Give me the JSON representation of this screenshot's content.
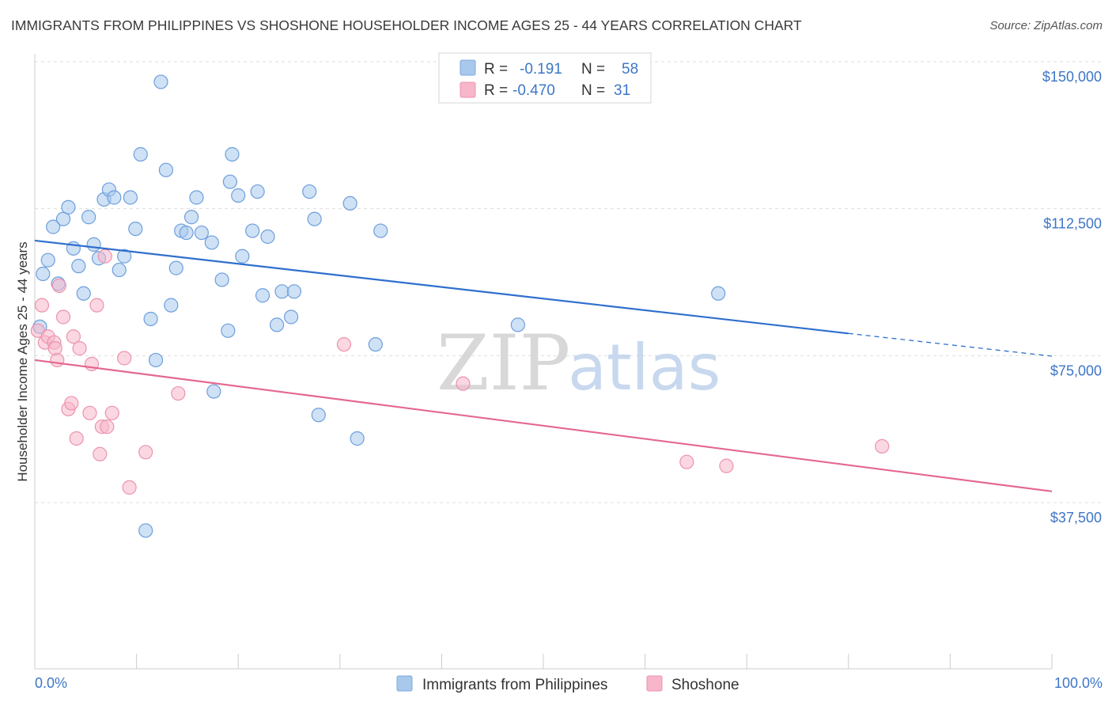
{
  "title": "IMMIGRANTS FROM PHILIPPINES VS SHOSHONE HOUSEHOLDER INCOME AGES 25 - 44 YEARS CORRELATION CHART",
  "source": "Source: ZipAtlas.com",
  "watermark": {
    "zip": "ZIP",
    "atlas": "atlas"
  },
  "colors": {
    "philippines": "#a8c8ec",
    "philippines_line": "#2f6fcd",
    "shoshone": "#f7b6ca",
    "shoshone_line": "#e4688f",
    "grid": "#dddddd",
    "label": "#3d76c8"
  },
  "legend": {
    "rows": [
      {
        "r_label": "R =",
        "r_value": "-0.191",
        "n_label": "N =",
        "n_value": "58"
      },
      {
        "r_label": "R =",
        "r_value": "-0.470",
        "n_label": "N =",
        "n_value": "31"
      }
    ]
  },
  "bottom_legend": [
    "Immigrants from Philippines",
    "Shoshone"
  ],
  "chart_data": {
    "type": "scatter",
    "ylabel": "Householder Income Ages 25 - 44 years",
    "x_tick_labels": [
      "0.0%",
      "100.0%"
    ],
    "y_tick_labels": [
      "$150,000",
      "$112,500",
      "$75,000",
      "$37,500"
    ],
    "y_ticks": [
      150000,
      112500,
      75000,
      37500
    ],
    "xlim": [
      0,
      100
    ],
    "ylim": [
      0,
      155000
    ],
    "grid": true,
    "legend_position": "top-center",
    "series": [
      {
        "name": "Immigrants from Philippines",
        "r": -0.191,
        "n": 58,
        "trend": {
          "x": [
            0,
            80
          ],
          "y": [
            108000,
            84300
          ],
          "dashed_extension_to": [
            100,
            78500
          ]
        },
        "points": [
          [
            0.5,
            86000
          ],
          [
            0.8,
            99500
          ],
          [
            1.3,
            103000
          ],
          [
            1.8,
            111500
          ],
          [
            2.3,
            97000
          ],
          [
            2.8,
            113500
          ],
          [
            3.3,
            116500
          ],
          [
            3.8,
            106000
          ],
          [
            4.3,
            101500
          ],
          [
            4.8,
            94500
          ],
          [
            5.3,
            114000
          ],
          [
            5.8,
            107000
          ],
          [
            6.3,
            103500
          ],
          [
            6.8,
            118500
          ],
          [
            7.3,
            121000
          ],
          [
            7.8,
            119000
          ],
          [
            8.3,
            100500
          ],
          [
            8.8,
            104000
          ],
          [
            9.4,
            119000
          ],
          [
            9.9,
            111000
          ],
          [
            10.4,
            130000
          ],
          [
            10.9,
            34000
          ],
          [
            11.4,
            88000
          ],
          [
            11.9,
            77500
          ],
          [
            12.4,
            148500
          ],
          [
            12.9,
            126000
          ],
          [
            13.4,
            91500
          ],
          [
            13.9,
            101000
          ],
          [
            14.4,
            110500
          ],
          [
            14.9,
            110000
          ],
          [
            15.4,
            114000
          ],
          [
            15.9,
            119000
          ],
          [
            16.4,
            110000
          ],
          [
            17.4,
            107500
          ],
          [
            17.6,
            69500
          ],
          [
            18.4,
            98000
          ],
          [
            19.0,
            85000
          ],
          [
            19.2,
            123000
          ],
          [
            19.4,
            130000
          ],
          [
            20.0,
            119500
          ],
          [
            20.4,
            104000
          ],
          [
            21.4,
            110500
          ],
          [
            21.9,
            120500
          ],
          [
            22.4,
            94000
          ],
          [
            22.9,
            109000
          ],
          [
            23.8,
            86500
          ],
          [
            24.3,
            95000
          ],
          [
            25.2,
            88500
          ],
          [
            25.5,
            95000
          ],
          [
            27.0,
            120500
          ],
          [
            27.5,
            113500
          ],
          [
            27.9,
            63500
          ],
          [
            31.0,
            117500
          ],
          [
            31.7,
            57500
          ],
          [
            33.5,
            81500
          ],
          [
            34.0,
            110500
          ],
          [
            47.5,
            86500
          ],
          [
            67.2,
            94500
          ]
        ]
      },
      {
        "name": "Shoshone",
        "r": -0.47,
        "n": 31,
        "trend": {
          "x": [
            0,
            100
          ],
          "y": [
            77500,
            44000
          ]
        },
        "points": [
          [
            0.3,
            85000
          ],
          [
            0.7,
            91500
          ],
          [
            1.0,
            82000
          ],
          [
            1.3,
            83500
          ],
          [
            1.9,
            82000
          ],
          [
            2.0,
            80500
          ],
          [
            2.2,
            77500
          ],
          [
            2.4,
            96500
          ],
          [
            2.8,
            88500
          ],
          [
            3.3,
            65000
          ],
          [
            3.6,
            66500
          ],
          [
            3.8,
            83500
          ],
          [
            4.1,
            57500
          ],
          [
            4.4,
            80500
          ],
          [
            5.4,
            64000
          ],
          [
            5.6,
            76500
          ],
          [
            6.1,
            91500
          ],
          [
            6.4,
            53500
          ],
          [
            6.6,
            60500
          ],
          [
            6.9,
            104000
          ],
          [
            7.1,
            60500
          ],
          [
            7.6,
            64000
          ],
          [
            8.8,
            78000
          ],
          [
            9.3,
            45000
          ],
          [
            10.9,
            54000
          ],
          [
            14.1,
            69000
          ],
          [
            30.4,
            81500
          ],
          [
            42.1,
            71500
          ],
          [
            64.1,
            51500
          ],
          [
            68.0,
            50500
          ],
          [
            83.3,
            55500
          ]
        ]
      }
    ]
  }
}
